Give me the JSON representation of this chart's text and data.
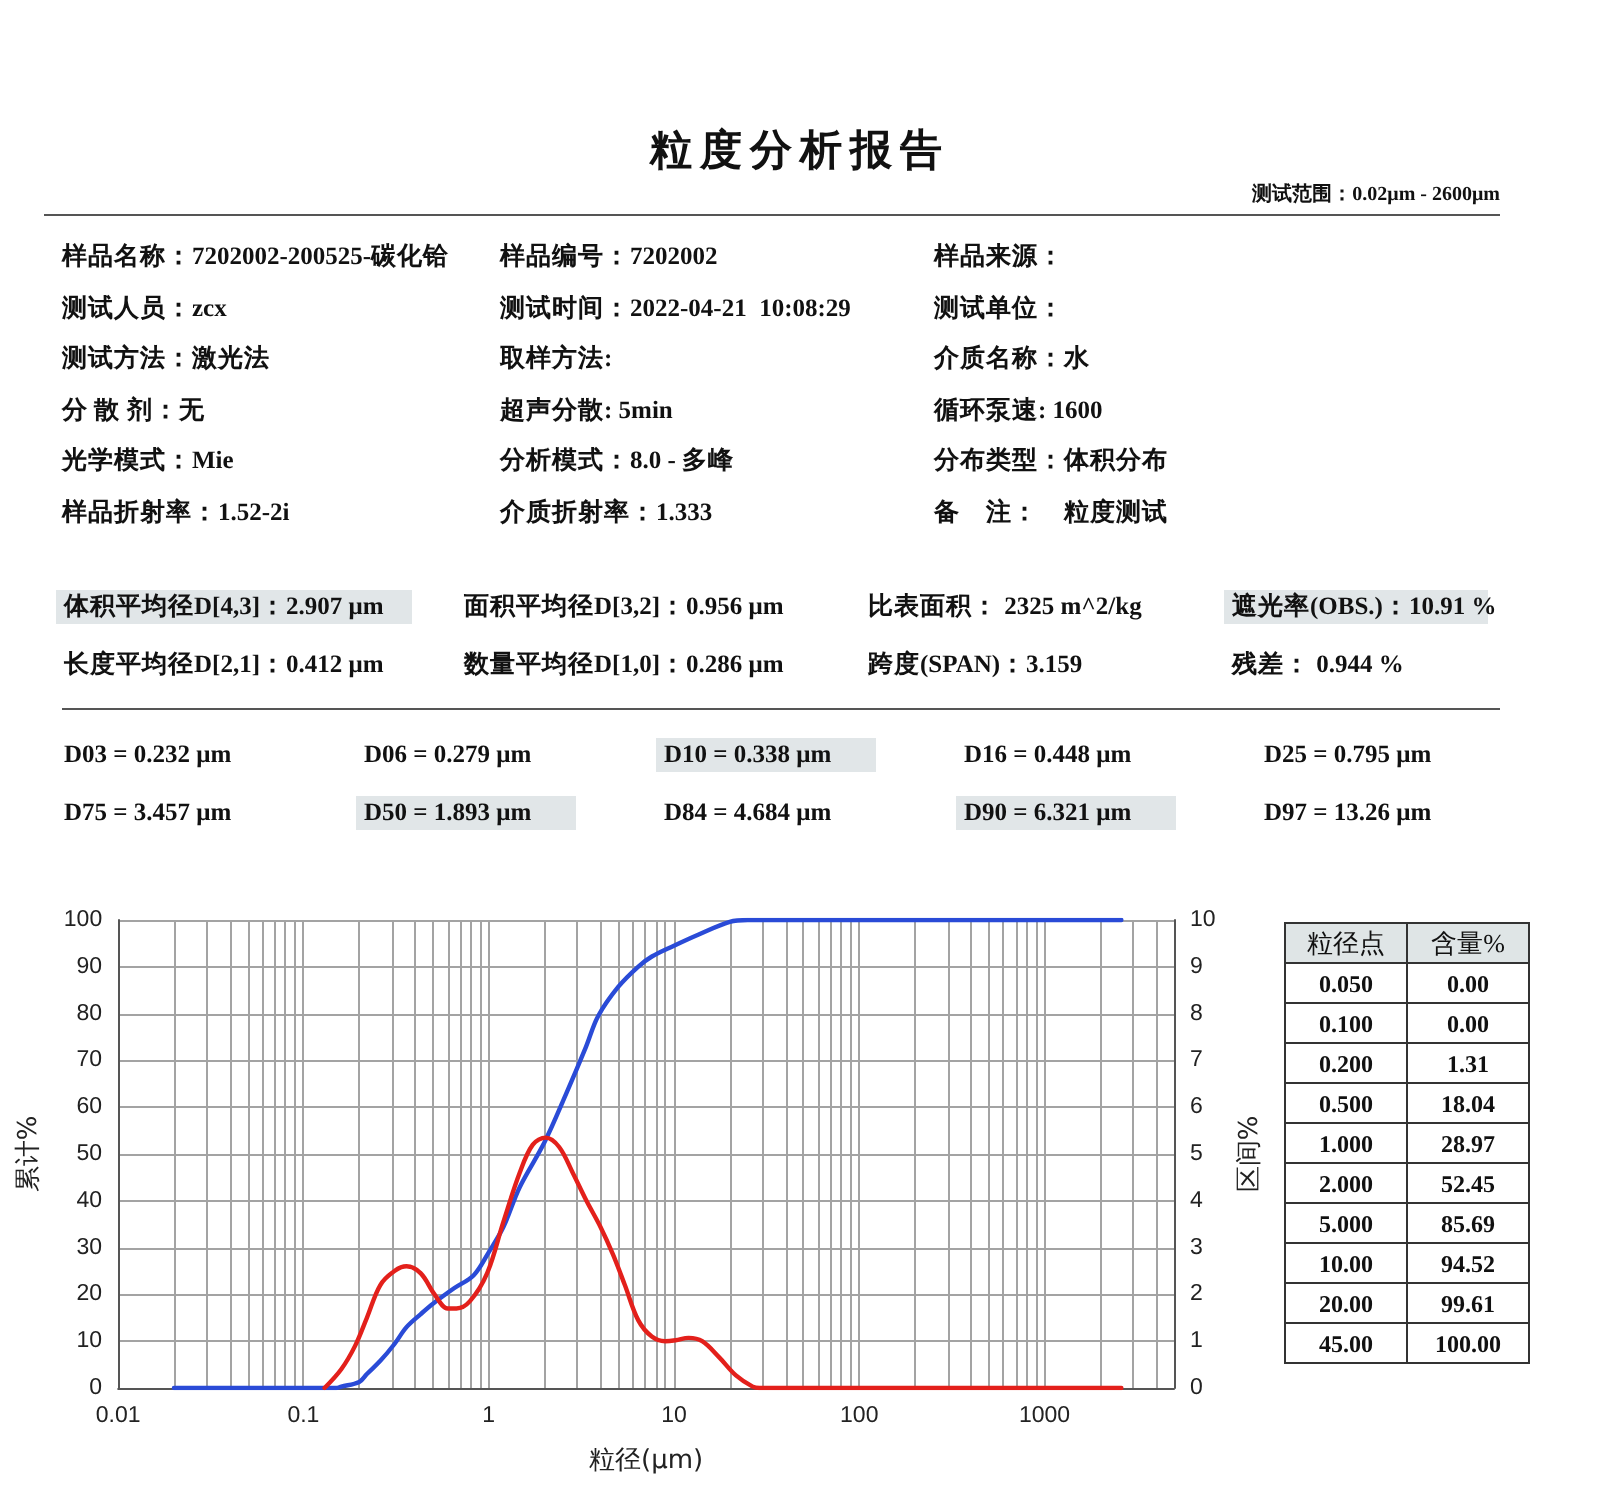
{
  "chart_data": {
    "type": "line",
    "title": "粒度分析报告",
    "xlabel": "粒径(μm)",
    "ylabel": "累计%",
    "y2label": "区间%",
    "log": "x",
    "grid": true,
    "marker": "none",
    "xlim": [
      0.01,
      5000
    ],
    "xticks": [
      0.01,
      {
        "value": 0.02,
        "label": null
      },
      {
        "value": 0.03,
        "label": null
      },
      {
        "value": 0.04,
        "label": null
      },
      {
        "value": 0.05,
        "label": null
      },
      {
        "value": 0.06,
        "label": null
      },
      {
        "value": 0.07,
        "label": null
      },
      {
        "value": 0.08,
        "label": null
      },
      {
        "value": 0.09,
        "label": null
      },
      0.1,
      {
        "value": 0.2,
        "label": null
      },
      {
        "value": 0.3,
        "label": null
      },
      {
        "value": 0.4,
        "label": null
      },
      {
        "value": 0.5,
        "label": null
      },
      {
        "value": 0.6,
        "label": null
      },
      {
        "value": 0.7,
        "label": null
      },
      {
        "value": 0.8,
        "label": null
      },
      {
        "value": 0.9,
        "label": null
      },
      1,
      {
        "value": 2,
        "label": null
      },
      {
        "value": 3,
        "label": null
      },
      {
        "value": 4,
        "label": null
      },
      {
        "value": 5,
        "label": null
      },
      {
        "value": 6,
        "label": null
      },
      {
        "value": 7,
        "label": null
      },
      {
        "value": 8,
        "label": null
      },
      {
        "value": 9,
        "label": null
      },
      10,
      {
        "value": 20,
        "label": null
      },
      {
        "value": 30,
        "label": null
      },
      {
        "value": 40,
        "label": null
      },
      {
        "value": 50,
        "label": null
      },
      {
        "value": 60,
        "label": null
      },
      {
        "value": 70,
        "label": null
      },
      {
        "value": 80,
        "label": null
      },
      {
        "value": 90,
        "label": null
      },
      100,
      {
        "value": 200,
        "label": null
      },
      {
        "value": 300,
        "label": null
      },
      {
        "value": 400,
        "label": null
      },
      {
        "value": 500,
        "label": null
      },
      {
        "value": 600,
        "label": null
      },
      {
        "value": 700,
        "label": null
      },
      {
        "value": 800,
        "label": null
      },
      {
        "value": 900,
        "label": null
      },
      1000,
      {
        "value": 2000,
        "label": null
      },
      {
        "value": 3000,
        "label": null
      },
      {
        "value": 4000,
        "label": null
      }
    ],
    "ylim": [
      0,
      100
    ],
    "yticks": [
      0,
      10,
      20,
      30,
      40,
      50,
      60,
      70,
      80,
      90,
      100
    ],
    "y2lim": [
      0,
      10
    ],
    "y2ticks": [
      0,
      1,
      2,
      3,
      4,
      5,
      6,
      7,
      8,
      9,
      10
    ],
    "series": [
      {
        "color": "#2a4bd7",
        "x": [
          0.02,
          0.05,
          0.1,
          0.15,
          0.16,
          0.2,
          0.22,
          0.26,
          0.31,
          0.36,
          0.43,
          0.5,
          0.65,
          0.83,
          1,
          1.2,
          1.47,
          2,
          2.62,
          3.35,
          3.9,
          5,
          6.4,
          7.6,
          10,
          13.6,
          20,
          25,
          45,
          2600
        ],
        "values": [
          0,
          0,
          0,
          0,
          0.3,
          1.3,
          3,
          5.8,
          9.4,
          13,
          15.8,
          18,
          21.3,
          24.1,
          29,
          34.4,
          42.9,
          52.5,
          62.9,
          72.9,
          79.5,
          85.7,
          90,
          92.2,
          94.5,
          96.9,
          99.6,
          100,
          100,
          100
        ]
      },
      {
        "color": "#e3201b",
        "axis": "y2",
        "x": [
          0.13,
          0.16,
          0.19,
          0.22,
          0.26,
          0.31,
          0.36,
          0.43,
          0.51,
          0.6,
          0.67,
          0.79,
          0.98,
          1.2,
          1.47,
          1.73,
          2.03,
          2.4,
          2.84,
          3.37,
          4,
          4.69,
          5.43,
          6.41,
          7.59,
          8.97,
          10.2,
          12,
          14.2,
          17.5,
          21.6,
          26.6,
          29,
          2600
        ],
        "values": [
          0,
          0.4,
          0.9,
          1.5,
          2.2,
          2.5,
          2.6,
          2.45,
          2,
          1.7,
          1.7,
          1.85,
          2.45,
          3.55,
          4.6,
          5.2,
          5.35,
          5.15,
          4.6,
          4,
          3.45,
          2.85,
          2.2,
          1.45,
          1.1,
          1,
          1.02,
          1.07,
          1,
          0.66,
          0.27,
          0.03,
          0,
          0
        ]
      }
    ],
    "annotations": [
      "测试范围：0.02μm - 2600μm",
      "样品名称：7202002-200525-碳化铪",
      "样品编号：7202002",
      "样品来源：",
      "测试人员：zcx",
      "测试时间：2022-04-21  10:08:29",
      "测试单位：",
      "测试方法：激光法",
      "取样方法:",
      "介质名称：水",
      "分 散 剂：无",
      "超声分散: 5min",
      "循环泵速: 1600",
      "光学模式：Mie",
      "分析模式：8.0 - 多峰",
      "分布类型：体积分布",
      "样品折射率：1.52-2i",
      "介质折射率：1.333",
      "备　注：　粒度测试",
      "体积平均径D[4,3]：2.907 μm",
      "面积平均径D[3,2]：0.956 μm",
      "比表面积： 2325 m^2/kg",
      "遮光率(OBS.)：10.91 %",
      "长度平均径D[2,1]：0.412 μm",
      "数量平均径D[1,0]：0.286 μm",
      "跨度(SPAN)：3.159",
      "残差： 0.944 %",
      "D03 = 0.232 μm",
      "D06 = 0.279 μm",
      "D10 = 0.338 μm",
      "D16 = 0.448 μm",
      "D25 = 0.795 μm",
      "D75 = 3.457 μm",
      "D50 = 1.893 μm",
      "D84 = 4.684 μm",
      "D90 = 6.321 μm",
      "D97 = 13.26 μm",
      "粒径点",
      "含量%",
      "0.050",
      "0.00",
      "0.100",
      "0.00",
      "0.200",
      "1.31",
      "0.500",
      "18.04",
      "1.000",
      "28.97",
      "2.000",
      "52.45",
      "5.000",
      "85.69",
      "10.00",
      "94.52",
      "20.00",
      "99.61",
      "45.00",
      "100.00"
    ]
  }
}
